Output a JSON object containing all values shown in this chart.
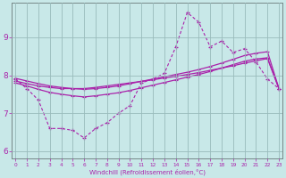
{
  "xlabel": "Windchill (Refroidissement éolien,°C)",
  "bg_color": "#c8e8e8",
  "line_color": "#aa22aa",
  "grid_color": "#99bbbb",
  "x_ticks": [
    0,
    1,
    2,
    3,
    4,
    5,
    6,
    7,
    8,
    9,
    10,
    11,
    12,
    13,
    14,
    15,
    16,
    17,
    18,
    19,
    20,
    21,
    22,
    23
  ],
  "y_ticks": [
    6,
    7,
    8,
    9
  ],
  "ylim": [
    5.8,
    9.9
  ],
  "xlim": [
    -0.3,
    23.3
  ],
  "line1_x": [
    0,
    1,
    2,
    3,
    4,
    5,
    6,
    7,
    8,
    9,
    10,
    11,
    12,
    13,
    14,
    15,
    16,
    17,
    18,
    19,
    20,
    21,
    22,
    23
  ],
  "line1_y": [
    7.9,
    7.65,
    7.35,
    6.6,
    6.6,
    6.55,
    6.35,
    6.6,
    6.75,
    7.0,
    7.2,
    7.8,
    7.9,
    8.05,
    8.75,
    9.65,
    9.4,
    8.75,
    8.9,
    8.6,
    8.7,
    8.35,
    7.9,
    7.65
  ],
  "line2_x": [
    0,
    1,
    2,
    3,
    4,
    5,
    6,
    7,
    8,
    9,
    10,
    11,
    12,
    13,
    14,
    15,
    16,
    17,
    18,
    19,
    20,
    21,
    22,
    23
  ],
  "line2_y": [
    7.85,
    7.78,
    7.72,
    7.68,
    7.65,
    7.65,
    7.65,
    7.68,
    7.72,
    7.76,
    7.8,
    7.84,
    7.88,
    7.93,
    7.97,
    8.02,
    8.07,
    8.13,
    8.19,
    8.25,
    8.32,
    8.38,
    8.44,
    7.65
  ],
  "line3_x": [
    0,
    1,
    2,
    3,
    4,
    5,
    6,
    7,
    8,
    9,
    10,
    11,
    12,
    13,
    14,
    15,
    16,
    17,
    18,
    19,
    20,
    21,
    22,
    23
  ],
  "line3_y": [
    7.92,
    7.85,
    7.78,
    7.72,
    7.68,
    7.65,
    7.63,
    7.65,
    7.68,
    7.72,
    7.78,
    7.84,
    7.9,
    7.96,
    8.02,
    8.08,
    8.15,
    8.23,
    8.32,
    8.42,
    8.52,
    8.58,
    8.62,
    7.65
  ],
  "line4_x": [
    0,
    1,
    2,
    3,
    4,
    5,
    6,
    7,
    8,
    9,
    10,
    11,
    12,
    13,
    14,
    15,
    16,
    17,
    18,
    19,
    20,
    21,
    22,
    23
  ],
  "line4_y": [
    7.8,
    7.72,
    7.63,
    7.55,
    7.5,
    7.46,
    7.43,
    7.46,
    7.5,
    7.54,
    7.6,
    7.67,
    7.74,
    7.81,
    7.88,
    7.95,
    8.02,
    8.1,
    8.19,
    8.28,
    8.37,
    8.43,
    8.46,
    7.65
  ]
}
